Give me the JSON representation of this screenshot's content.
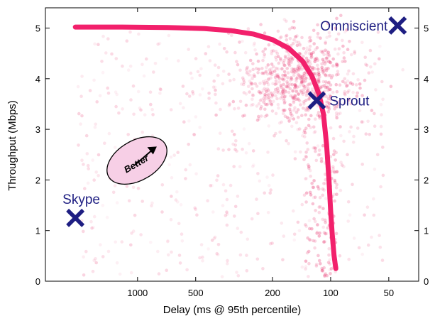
{
  "colors": {
    "frontier": "#f2206b",
    "scatter": "#e8356f",
    "marker": "#1e1e82",
    "better_fill": "#f7cfe6"
  },
  "chart_data": {
    "type": "scatter",
    "xlabel": "Delay (ms @ 95th percentile)",
    "ylabel": "Throughput (Mbps)",
    "x_scale": "log",
    "x_reversed": true,
    "xlim": [
      3000,
      35
    ],
    "ylim": [
      0,
      5.4
    ],
    "x_ticks": [
      1000,
      500,
      200,
      100,
      50
    ],
    "x_tick_labels": [
      "1000",
      "500",
      "200",
      "100",
      "50"
    ],
    "y_ticks": [
      0,
      1,
      2,
      3,
      4,
      5
    ],
    "y_tick_labels": [
      "0",
      "1",
      "2",
      "3",
      "4",
      "5"
    ],
    "y_ticks_right": [
      0,
      1,
      2,
      3,
      4,
      5
    ],
    "y_tick_labels_right": [
      "0",
      "1",
      "2",
      "3",
      "4",
      "5"
    ],
    "grid": false,
    "points": [
      {
        "label": "Skype",
        "x": 2100,
        "y": 1.25
      },
      {
        "label": "Sprout",
        "x": 118,
        "y": 3.57
      },
      {
        "label": "Omniscient",
        "x": 45,
        "y": 5.05
      }
    ],
    "frontier": {
      "x": [
        2100,
        1200,
        700,
        450,
        330,
        250,
        200,
        165,
        140,
        125,
        115,
        109,
        105,
        102,
        100,
        98,
        96,
        94
      ],
      "y": [
        5.02,
        5.02,
        5.01,
        4.99,
        4.95,
        4.88,
        4.77,
        4.6,
        4.35,
        4.05,
        3.7,
        3.3,
        2.7,
        2.0,
        1.4,
        0.9,
        0.5,
        0.25
      ]
    },
    "annotation": "Better"
  }
}
